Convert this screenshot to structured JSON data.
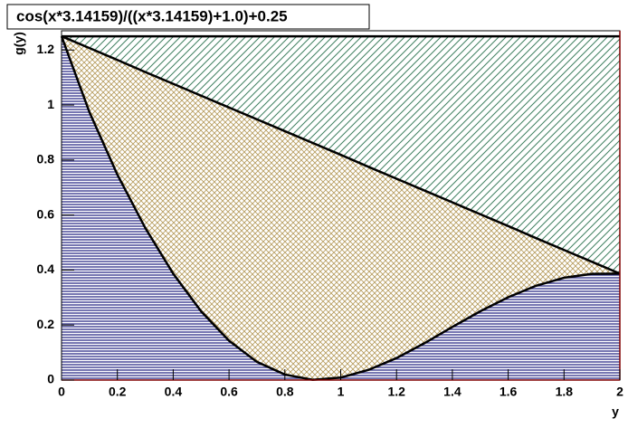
{
  "chart_data": {
    "type": "area",
    "title": "cos(x*3.14159)/((x*3.14159)+1.0)+0.25",
    "x_label": "y",
    "y_label": "g(y)",
    "x": [
      0,
      0.1,
      0.2,
      0.3,
      0.4,
      0.5,
      0.6,
      0.7,
      0.8,
      0.9,
      1.0,
      1.1,
      1.2,
      1.3,
      1.4,
      1.5,
      1.6,
      1.7,
      1.8,
      1.9,
      2.0
    ],
    "series": [
      {
        "color": "#000000",
        "hatch": "diagonal",
        "fill_color": "#3f8060",
        "values": [
          1.25,
          1.25,
          1.25,
          1.25,
          1.25,
          1.25,
          1.25,
          1.25,
          1.25,
          1.25,
          1.25,
          1.25,
          1.25,
          1.25,
          1.25,
          1.25,
          1.25,
          1.25,
          1.25,
          1.25,
          1.25
        ]
      },
      {
        "color": "#000000",
        "hatch": "cross",
        "fill_color": "#b59a5a",
        "values": [
          1.25,
          1.207,
          1.164,
          1.12,
          1.077,
          1.034,
          0.991,
          0.948,
          0.905,
          0.862,
          0.819,
          0.775,
          0.732,
          0.689,
          0.646,
          0.603,
          0.56,
          0.516,
          0.473,
          0.43,
          0.387
        ]
      },
      {
        "color": "#000000",
        "hatch": "horizontal",
        "fill_color": "#3c3c90",
        "values": [
          1.25,
          0.974,
          0.747,
          0.553,
          0.387,
          0.25,
          0.143,
          0.066,
          0.02,
          0.001,
          0.009,
          0.037,
          0.08,
          0.134,
          0.193,
          0.25,
          0.301,
          0.343,
          0.372,
          0.386,
          0.387
        ]
      }
    ],
    "xlim": [
      0,
      2
    ],
    "xticks": [
      0,
      0.2,
      0.4,
      0.6,
      0.8,
      1,
      1.2,
      1.4,
      1.6,
      1.8,
      2
    ],
    "ylim": [
      0,
      1.27
    ],
    "yticks": [
      0,
      0.2,
      0.4,
      0.6,
      0.8,
      1,
      1.2
    ]
  }
}
